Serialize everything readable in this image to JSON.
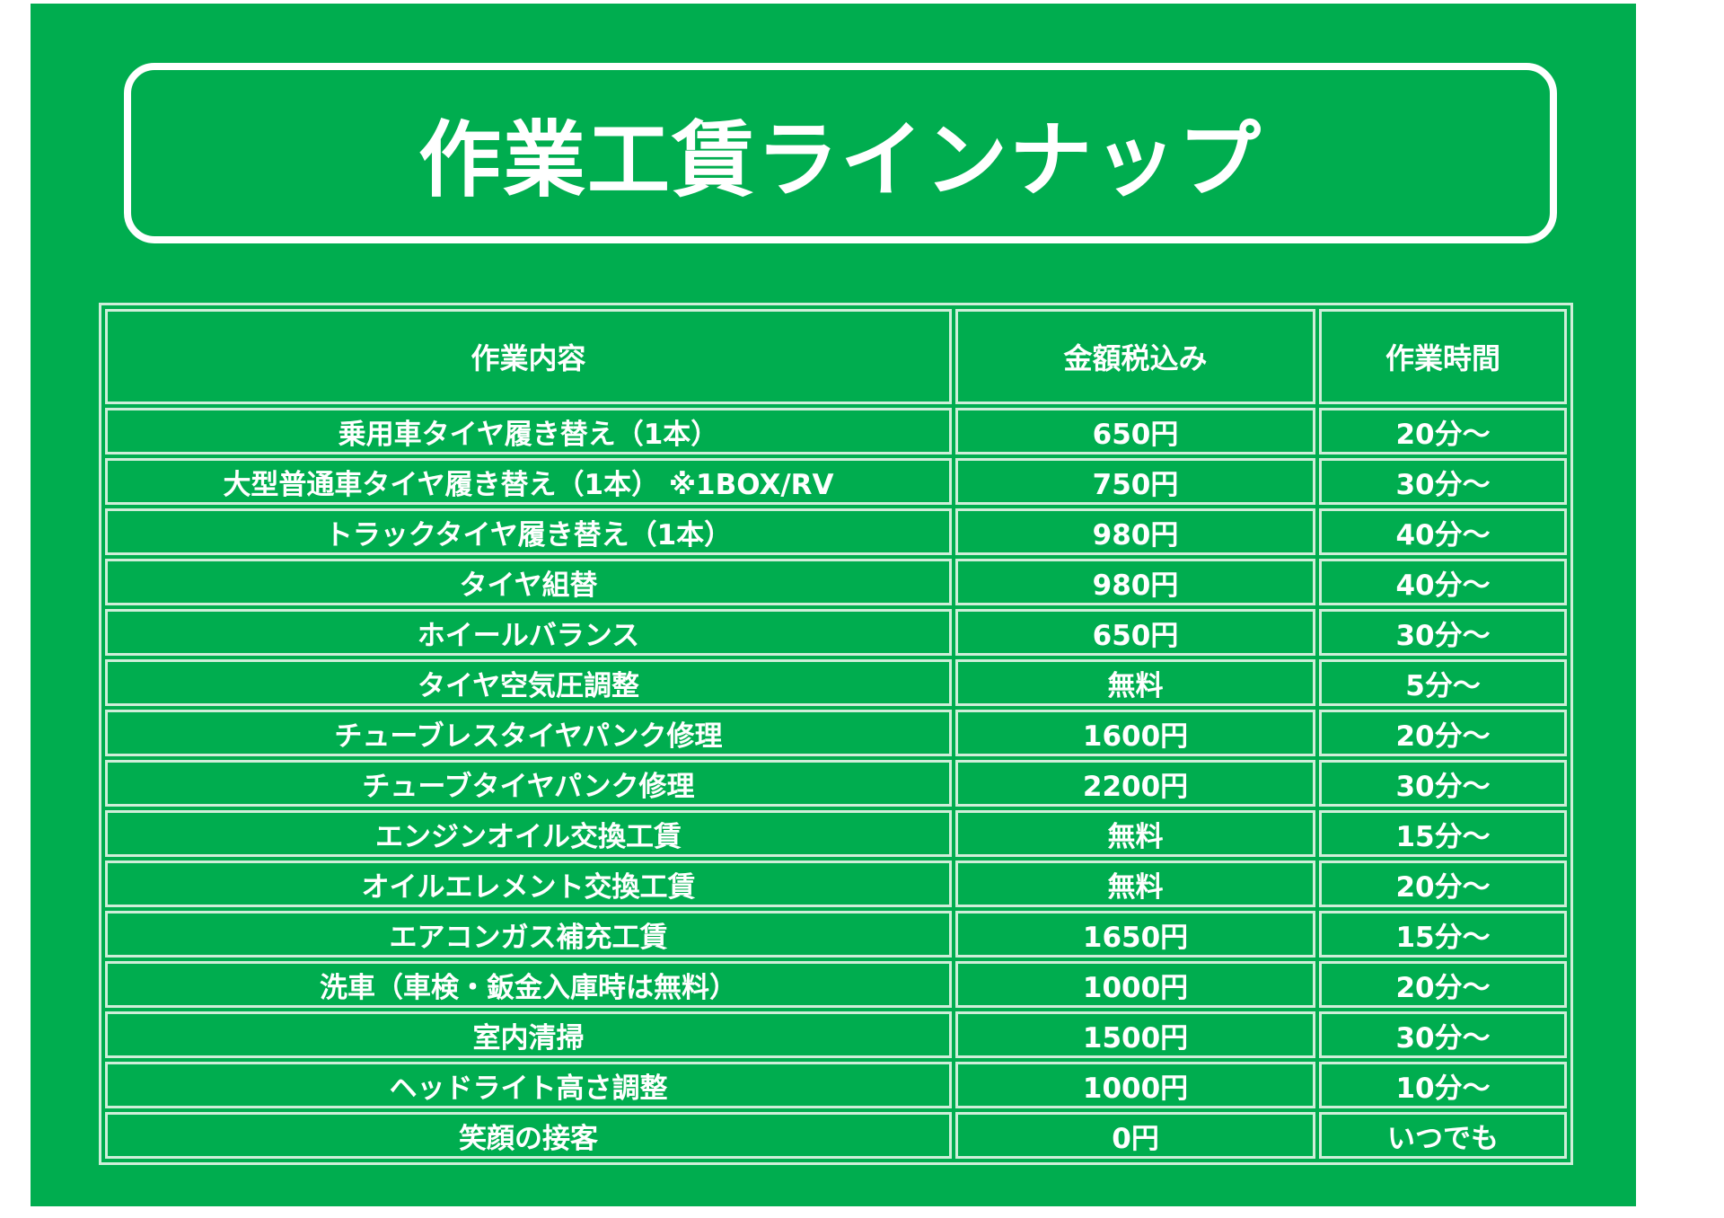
{
  "title": "作業工賃ラインナップ",
  "colors": {
    "background": "#00ad4f",
    "text": "#ffffff",
    "border": "#cfeed9"
  },
  "table": {
    "headers": [
      "作業内容",
      "金額税込み",
      "作業時間"
    ],
    "rows": [
      {
        "task": "乗用車タイヤ履き替え（1本）",
        "price": "650円",
        "time": "20分～"
      },
      {
        "task": "大型普通車タイヤ履き替え（1本） ※1BOX/RV",
        "price": "750円",
        "time": "30分～"
      },
      {
        "task": "トラックタイヤ履き替え（1本）",
        "price": "980円",
        "time": "40分～"
      },
      {
        "task": "タイヤ組替",
        "price": "980円",
        "time": "40分～"
      },
      {
        "task": "ホイールバランス",
        "price": "650円",
        "time": "30分～"
      },
      {
        "task": "タイヤ空気圧調整",
        "price": "無料",
        "time": "5分～"
      },
      {
        "task": "チューブレスタイヤパンク修理",
        "price": "1600円",
        "time": "20分～"
      },
      {
        "task": "チューブタイヤパンク修理",
        "price": "2200円",
        "time": "30分～"
      },
      {
        "task": "エンジンオイル交換工賃",
        "price": "無料",
        "time": "15分～"
      },
      {
        "task": "オイルエレメント交換工賃",
        "price": "無料",
        "time": "20分～"
      },
      {
        "task": "エアコンガス補充工賃",
        "price": "1650円",
        "time": "15分～"
      },
      {
        "task": "洗車（車検・鈑金入庫時は無料）",
        "price": "1000円",
        "time": "20分～"
      },
      {
        "task": "室内清掃",
        "price": "1500円",
        "time": "30分～"
      },
      {
        "task": "ヘッドライト高さ調整",
        "price": "1000円",
        "time": "10分～"
      },
      {
        "task": "笑顔の接客",
        "price": "0円",
        "time": "いつでも"
      }
    ]
  }
}
